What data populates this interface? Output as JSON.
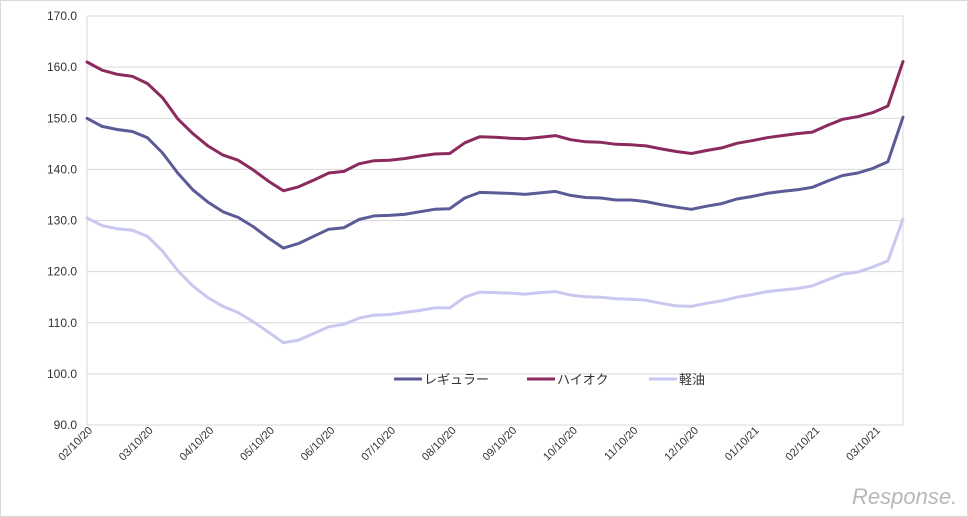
{
  "chart_data": {
    "type": "line",
    "title": "",
    "xlabel": "",
    "ylabel": "",
    "ylim": [
      90,
      170
    ],
    "yticks": [
      90,
      100,
      110,
      120,
      130,
      140,
      150,
      160,
      170
    ],
    "ytick_labels": [
      "90.0",
      "100.0",
      "110.0",
      "120.0",
      "130.0",
      "140.0",
      "150.0",
      "160.0",
      "170.0"
    ],
    "xtick_labels": [
      "02/10/20",
      "03/10/20",
      "04/10/20",
      "05/10/20",
      "06/10/20",
      "07/10/20",
      "08/10/20",
      "09/10/20",
      "10/10/20",
      "11/10/20",
      "12/10/20",
      "01/10/21",
      "02/10/21",
      "03/10/21"
    ],
    "points_per_series": 55,
    "grid": "horizontal",
    "legend_position": "lower-center",
    "series": [
      {
        "name": "レギュラー",
        "color": "#5b5b97",
        "values": [
          150.0,
          148.4,
          147.8,
          147.4,
          146.2,
          143.2,
          139.3,
          136.0,
          133.6,
          131.7,
          130.6,
          128.8,
          126.6,
          124.6,
          125.5,
          126.9,
          128.3,
          128.6,
          130.2,
          130.9,
          131.0,
          131.2,
          131.7,
          132.2,
          132.3,
          134.4,
          135.5,
          135.4,
          135.3,
          135.1,
          135.4,
          135.7,
          134.9,
          134.5,
          134.4,
          134.0,
          134.0,
          133.7,
          133.1,
          132.6,
          132.2,
          132.8,
          133.3,
          134.2,
          134.7,
          135.3,
          135.7,
          136.0,
          136.5,
          137.7,
          138.8,
          139.3,
          140.2,
          141.5,
          150.2
        ]
      },
      {
        "name": "ハイオク",
        "color": "#8b2a5c",
        "values": [
          161.0,
          159.4,
          158.6,
          158.2,
          156.8,
          154.0,
          149.9,
          147.0,
          144.6,
          142.8,
          141.8,
          139.9,
          137.7,
          135.8,
          136.6,
          137.9,
          139.3,
          139.6,
          141.1,
          141.7,
          141.8,
          142.1,
          142.6,
          143.0,
          143.1,
          145.2,
          146.4,
          146.3,
          146.1,
          146.0,
          146.3,
          146.6,
          145.8,
          145.4,
          145.3,
          144.9,
          144.8,
          144.6,
          144.0,
          143.5,
          143.1,
          143.7,
          144.2,
          145.1,
          145.6,
          146.2,
          146.6,
          147.0,
          147.3,
          148.6,
          149.8,
          150.3,
          151.1,
          152.4,
          161.1
        ]
      },
      {
        "name": "軽油",
        "color": "#c8c8f0",
        "values": [
          130.5,
          129.0,
          128.4,
          128.1,
          126.9,
          124.0,
          120.2,
          117.2,
          114.9,
          113.2,
          112.0,
          110.2,
          108.2,
          106.1,
          106.6,
          107.9,
          109.2,
          109.7,
          110.9,
          111.5,
          111.6,
          112.0,
          112.4,
          112.9,
          112.9,
          115.0,
          116.0,
          115.9,
          115.8,
          115.6,
          115.9,
          116.1,
          115.4,
          115.1,
          115.0,
          114.7,
          114.6,
          114.4,
          113.8,
          113.3,
          113.2,
          113.8,
          114.3,
          115.0,
          115.5,
          116.1,
          116.4,
          116.7,
          117.2,
          118.4,
          119.5,
          119.9,
          120.9,
          122.1,
          130.3
        ]
      }
    ]
  },
  "watermark": "Response."
}
